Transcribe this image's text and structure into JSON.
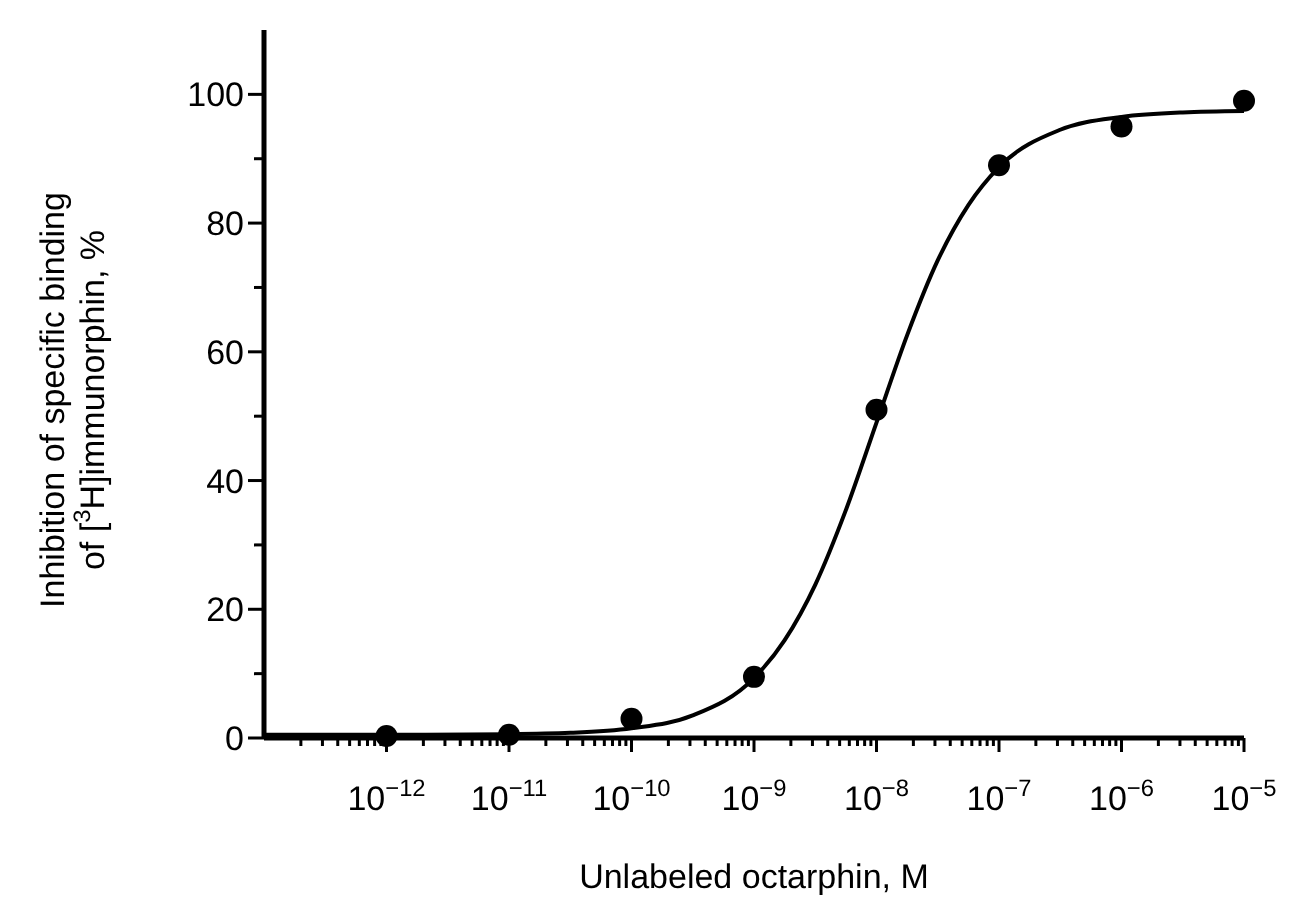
{
  "chart_data": {
    "type": "scatter",
    "xlabel": "Unlabeled octarphin, M",
    "ylabel": "Inhibition of specific binding\nof [$^{3}$H]immunorphin, %",
    "log": "x",
    "marker": "circle",
    "grid": false,
    "xlim": [
      1e-13,
      1e-05
    ],
    "ylim": [
      0,
      110
    ],
    "xticks": [
      {
        "value": 1e-12,
        "label": "10$^{−12}$"
      },
      {
        "value": 1e-11,
        "label": "10$^{−11}$"
      },
      {
        "value": 1e-10,
        "label": "10$^{−10}$"
      },
      {
        "value": 1e-09,
        "label": "10$^{−9}$"
      },
      {
        "value": 1e-08,
        "label": "10$^{−8}$"
      },
      {
        "value": 1e-07,
        "label": "10$^{−7}$"
      },
      {
        "value": 1e-06,
        "label": "10$^{−6}$"
      },
      {
        "value": 1e-05,
        "label": "10$^{−5}$"
      }
    ],
    "yticks": [
      0,
      {
        "value": 10,
        "label": null
      },
      20,
      {
        "value": 30,
        "label": null
      },
      40,
      {
        "value": 50,
        "label": null
      },
      60,
      {
        "value": 70,
        "label": null
      },
      80,
      {
        "value": 90,
        "label": null
      },
      100
    ],
    "series": [
      {
        "color": "#000000",
        "x": [
          1e-12,
          1e-11,
          1e-10,
          1e-09,
          1e-08,
          1e-07,
          1e-06,
          1e-05
        ],
        "values": [
          0.3,
          0.5,
          3,
          9.5,
          51,
          89,
          95,
          99
        ]
      },
      {
        "type": "line",
        "color": "#000000",
        "marker": "none",
        "x": [
          1e-13,
          1e-12,
          1e-11,
          3.16e-11,
          1e-10,
          3.16e-10,
          1e-09,
          1.78e-09,
          3.16e-09,
          5.62e-09,
          1e-08,
          1.78e-08,
          3.16e-08,
          5.62e-08,
          1e-07,
          3.16e-07,
          1e-06,
          3.16e-06,
          1e-05
        ],
        "values": [
          0.5,
          0.5,
          0.6,
          0.8,
          1.5,
          3.5,
          9.3,
          15.2,
          23.8,
          35.4,
          49,
          62.6,
          74.2,
          82.8,
          88.7,
          94.5,
          96.5,
          97.2,
          97.4
        ]
      }
    ]
  }
}
